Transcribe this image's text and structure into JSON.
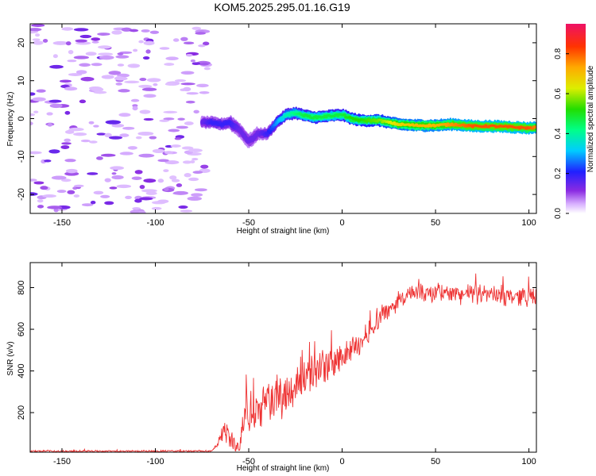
{
  "figure": {
    "title": "KOM5.2025.295.01.16.G19"
  },
  "colors": {
    "snr_line": "#ee3333",
    "frame": "#000000"
  },
  "chart_data": [
    {
      "type": "heatmap",
      "name": "spectrogram",
      "xlabel": "Height of straight line (km)",
      "ylabel": "Frequency (Hz)",
      "xlim": [
        -167,
        104
      ],
      "ylim": [
        -25,
        25
      ],
      "xticks": [
        -150,
        -100,
        -50,
        0,
        50,
        100
      ],
      "yticks": [
        -20,
        -10,
        0,
        10,
        20
      ],
      "ridge": {
        "description_x_km": [
          -75,
          -70,
          -65,
          -60,
          -55,
          -50,
          -45,
          -40,
          -35,
          -30,
          -25,
          -20,
          -15,
          -10,
          -5,
          0,
          5,
          10,
          20,
          30,
          40,
          50,
          60,
          70,
          80,
          90,
          100,
          104
        ],
        "frequency_hz": [
          -1,
          -1,
          -1.5,
          -1,
          -3,
          -6,
          -4,
          -4,
          -1,
          1,
          1.5,
          0.8,
          0.3,
          0.5,
          0.8,
          1,
          0,
          -0.5,
          -0.5,
          -1.5,
          -1.8,
          -1.8,
          -1.5,
          -2,
          -2,
          -2.2,
          -2.5,
          -2.3
        ],
        "amplitude": [
          0.15,
          0.2,
          0.2,
          0.2,
          0.15,
          0.15,
          0.15,
          0.2,
          0.3,
          0.4,
          0.45,
          0.5,
          0.5,
          0.5,
          0.5,
          0.5,
          0.55,
          0.55,
          0.6,
          0.7,
          0.75,
          0.75,
          0.8,
          0.85,
          0.85,
          0.85,
          0.85,
          0.8
        ]
      },
      "noise_region_x_km": [
        -167,
        -72
      ],
      "colorbar": {
        "label": "Normalized spectral amplitude",
        "range": [
          0,
          0.95
        ],
        "ticks": [
          "0.0",
          "0.2",
          "0.4",
          "0.6",
          "0.8"
        ]
      }
    },
    {
      "type": "line",
      "name": "snr",
      "xlabel": "Height of straight line (km)",
      "ylabel": "SNR (v/v)",
      "xlim": [
        -167,
        104
      ],
      "ylim": [
        10,
        920
      ],
      "xticks": [
        -150,
        -100,
        -50,
        0,
        50,
        100
      ],
      "yticks": [
        200,
        400,
        600,
        800
      ],
      "trend": {
        "x": [
          -167,
          -70,
          -67,
          -63,
          -60,
          -57,
          -55,
          -53,
          -50,
          -47,
          -45,
          -40,
          -35,
          -30,
          -25,
          -20,
          -15,
          -10,
          -5,
          0,
          5,
          10,
          15,
          20,
          25,
          30,
          35,
          40,
          50,
          60,
          70,
          80,
          90,
          100,
          104
        ],
        "y": [
          15,
          15,
          40,
          120,
          80,
          40,
          25,
          150,
          220,
          170,
          220,
          240,
          270,
          300,
          330,
          360,
          390,
          420,
          440,
          460,
          500,
          540,
          600,
          650,
          700,
          740,
          760,
          770,
          775,
          770,
          770,
          765,
          760,
          760,
          750
        ],
        "noise_amplitude": [
          5,
          5,
          10,
          50,
          60,
          30,
          20,
          90,
          130,
          110,
          120,
          110,
          110,
          110,
          110,
          100,
          100,
          90,
          80,
          70,
          70,
          60,
          60,
          60,
          60,
          50,
          50,
          50,
          50,
          50,
          50,
          50,
          50,
          50,
          50
        ]
      }
    }
  ]
}
